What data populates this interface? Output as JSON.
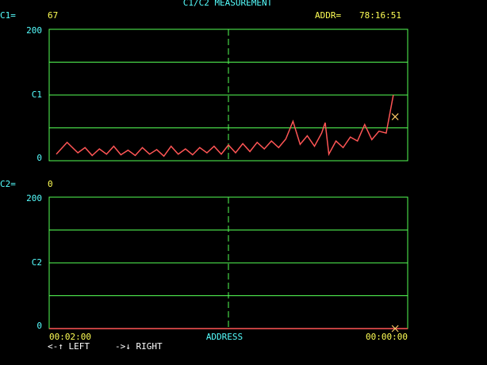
{
  "header": {
    "title": "C1/C2 MEASUREMENT",
    "c1_label": "C1=",
    "c1_value": 67,
    "addr_label": "ADDR=",
    "addr_value": "78:16:51",
    "c2_label": "C2=",
    "c2_value": 0
  },
  "chart_data": [
    {
      "type": "line",
      "ylim": [
        0,
        200
      ],
      "yticks": [
        0,
        {
          "value": 100,
          "label": "C1"
        },
        200
      ],
      "ygrid": [
        50,
        100,
        150
      ],
      "xlim": [
        0,
        100
      ],
      "xgrid": [
        50
      ],
      "series": [
        {
          "color": "#ff5555",
          "x": [
            2,
            4,
            5,
            8,
            10,
            12,
            14,
            16,
            18,
            20,
            22,
            24,
            26,
            28,
            30,
            32,
            34,
            36,
            38,
            40,
            42,
            44,
            46,
            48,
            50,
            52,
            54,
            56,
            58,
            60,
            62,
            64,
            66,
            68,
            70,
            72,
            74,
            76,
            77,
            78,
            80,
            82,
            84,
            86,
            88,
            90,
            92,
            94,
            96
          ],
          "values": [
            10,
            22,
            28,
            12,
            20,
            8,
            18,
            10,
            22,
            9,
            16,
            8,
            20,
            10,
            17,
            7,
            22,
            10,
            18,
            9,
            20,
            12,
            22,
            10,
            24,
            12,
            26,
            14,
            28,
            18,
            30,
            20,
            33,
            60,
            25,
            38,
            22,
            42,
            58,
            10,
            30,
            20,
            36,
            30,
            55,
            32,
            45,
            42,
            100
          ]
        }
      ],
      "cursor": {
        "x": 96.5,
        "value": 67,
        "color": "#ffcc66"
      }
    },
    {
      "type": "line",
      "ylim": [
        0,
        200
      ],
      "yticks": [
        0,
        {
          "value": 100,
          "label": "C2"
        },
        200
      ],
      "ygrid": [
        50,
        100,
        150
      ],
      "xlim": [
        0,
        100
      ],
      "xgrid": [
        50
      ],
      "xticks": [
        {
          "value": 0,
          "label": "00:02:00"
        },
        {
          "value": 100,
          "label": "00:00:00"
        }
      ],
      "xlabel": "ADDRESS",
      "series": [
        {
          "color": "#ff5555",
          "x": [
            0,
            100
          ],
          "values": [
            0,
            0
          ]
        }
      ],
      "cursor": {
        "x": 96.5,
        "value": 0,
        "color": "#ffcc66"
      }
    }
  ],
  "footer": {
    "left": "<-↑ LEFT",
    "right": "->↓ RIGHT"
  }
}
